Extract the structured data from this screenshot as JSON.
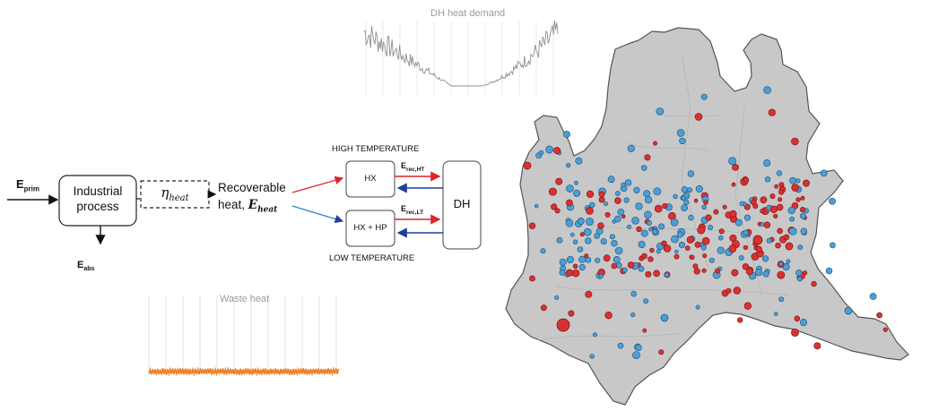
{
  "inputs": {
    "primary": "E",
    "primary_sub": "prim",
    "absorbed": "E",
    "absorbed_sub": "abs"
  },
  "blocks": {
    "process_line1": "Industrial",
    "process_line2": "process",
    "efficiency_symbol": "η",
    "efficiency_sub": "heat",
    "recoverable_line1": "Recoverable",
    "recoverable_line2": "heat, ",
    "recoverable_symbol": "E",
    "recoverable_sub": "heat",
    "hx": "HX",
    "hx_hp": "HX + HP",
    "dh": "DH"
  },
  "flows": {
    "high_temperature": "HIGH TEMPERATURE",
    "low_temperature": "LOW TEMPERATURE",
    "rec_ht": "E",
    "rec_ht_sub": "rec,HT",
    "rec_lt": "E",
    "rec_lt_sub": "rec,LT"
  },
  "profiles": {
    "demand_title": "DH heat demand",
    "waste_title": "Waste heat"
  },
  "colors": {
    "high_temp": "#e0232b",
    "low_temp": "#2f7fc1",
    "arrow_hot": "#d9262a",
    "arrow_cold": "#1e3f9e",
    "demand_line": "#8f8f8f",
    "waste_line": "#ee7d22",
    "map_fill": "#c8c8c8",
    "map_border": "#555555",
    "site_red": "#d93131",
    "site_blue": "#4a9fd6"
  }
}
